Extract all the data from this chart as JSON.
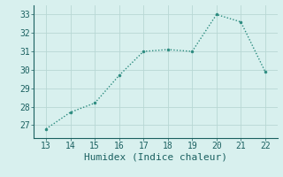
{
  "x": [
    13,
    14,
    15,
    16,
    17,
    18,
    19,
    20,
    21,
    22
  ],
  "y": [
    26.8,
    27.7,
    28.2,
    29.7,
    31.0,
    31.1,
    31.0,
    33.0,
    32.6,
    29.9
  ],
  "line_color": "#2a8a7e",
  "marker_color": "#2a8a7e",
  "bg_color": "#d8f0ee",
  "grid_color": "#b8d8d4",
  "xlabel": "Humidex (Indice chaleur)",
  "xlim": [
    12.5,
    22.5
  ],
  "ylim": [
    26.3,
    33.5
  ],
  "yticks": [
    27,
    28,
    29,
    30,
    31,
    32,
    33
  ],
  "xticks": [
    13,
    14,
    15,
    16,
    17,
    18,
    19,
    20,
    21,
    22
  ],
  "font_color": "#1a6060",
  "font_family": "monospace",
  "tick_fontsize": 7,
  "xlabel_fontsize": 8
}
